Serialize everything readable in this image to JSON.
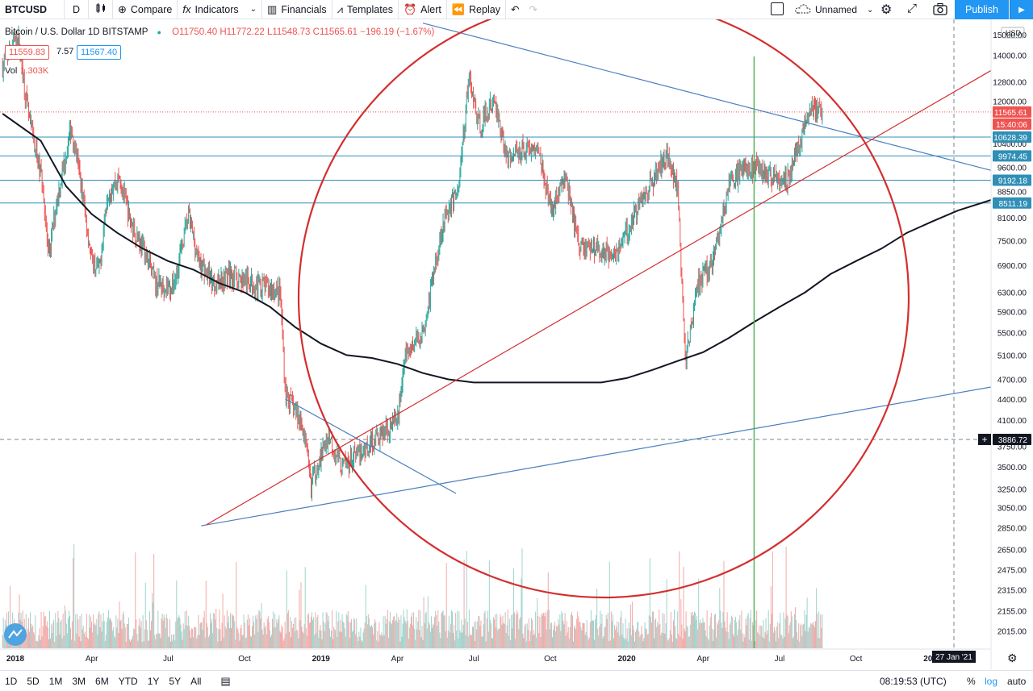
{
  "toolbar": {
    "symbol": "BTCUSD",
    "interval": "D",
    "compare": "Compare",
    "indicators": "Indicators",
    "financials": "Financials",
    "templates": "Templates",
    "alert": "Alert",
    "replay": "Replay",
    "layout_name": "Unnamed",
    "publish": "Publish"
  },
  "legend": {
    "title": "Bitcoin / U.S. Dollar  1D  BITSTAMP",
    "ohlc": "O11750.40  H11772.22  L11548.73  C11565.61  −196.19 (−1.67%)",
    "bid": "11559.83",
    "spread": "7.57",
    "ask": "11567.40",
    "vol_label": "Vol",
    "vol_value": "1.303K"
  },
  "axis": {
    "currency": "USD",
    "cursor_price": "3886.72",
    "cursor_date": "27 Jan '21"
  },
  "bottom": {
    "ranges": [
      "1D",
      "5D",
      "1M",
      "3M",
      "6M",
      "YTD",
      "1Y",
      "5Y",
      "All"
    ],
    "clock": "08:19:53 (UTC)",
    "pct": "%",
    "log": "log",
    "auto": "auto"
  },
  "colors": {
    "up": "#26a69a",
    "down": "#ef5350",
    "ma": "#131722",
    "trend_blue": "#4a7fc1",
    "hline": "#2f8fb5",
    "circle": "#d32f2f",
    "vline": "#4caf50",
    "accent": "#2196f3"
  },
  "chart_data": {
    "type": "candlestick",
    "symbol": "BTCUSD",
    "scale": "log",
    "ylim": [
      1900,
      15800
    ],
    "y_ticks": [
      15000,
      14000,
      12800,
      12000,
      11200,
      10400,
      9600,
      8850,
      8100,
      7500,
      6900,
      6300,
      5900,
      5500,
      5100,
      4700,
      4400,
      4100,
      3750,
      3500,
      3250,
      3050,
      2850,
      2650,
      2475,
      2315,
      2155,
      2015
    ],
    "y_tick_labels": [
      "15000.00",
      "14000.00",
      "12800.00",
      "12000.00",
      "11200.00",
      "10400.00",
      "9600.00",
      "8850.00",
      "8100.00",
      "7500.00",
      "6900.00",
      "6300.00",
      "5900.00",
      "5500.00",
      "5100.00",
      "4700.00",
      "4400.00",
      "4100.00",
      "3750.00",
      "3500.00",
      "3250.00",
      "3050.00",
      "2850.00",
      "2650.00",
      "2475.00",
      "2315.00",
      "2155.00",
      "2015.00"
    ],
    "x_ticks": [
      "2018",
      "Apr",
      "Jul",
      "Oct",
      "2019",
      "Apr",
      "Jul",
      "Oct",
      "2020",
      "Apr",
      "Jul",
      "Oct",
      "2021"
    ],
    "x_tick_months": [
      0,
      3,
      6,
      9,
      12,
      15,
      18,
      21,
      24,
      27,
      30,
      33,
      36
    ],
    "x_range_months": [
      -0.6,
      38.3
    ],
    "close_path": [
      [
        -0.5,
        13500
      ],
      [
        0.1,
        15000
      ],
      [
        0.5,
        11500
      ],
      [
        1.1,
        9000
      ],
      [
        1.3,
        7000
      ],
      [
        1.6,
        8500
      ],
      [
        2.2,
        11000
      ],
      [
        2.5,
        9500
      ],
      [
        3.0,
        7000
      ],
      [
        3.3,
        6800
      ],
      [
        3.6,
        8800
      ],
      [
        4.1,
        9300
      ],
      [
        4.5,
        8000
      ],
      [
        5.1,
        7200
      ],
      [
        5.5,
        6500
      ],
      [
        6.2,
        6400
      ],
      [
        6.8,
        8200
      ],
      [
        7.2,
        7000
      ],
      [
        7.8,
        6500
      ],
      [
        8.4,
        6700
      ],
      [
        9.2,
        6500
      ],
      [
        10.0,
        6400
      ],
      [
        10.4,
        6300
      ],
      [
        10.6,
        4500
      ],
      [
        11.3,
        4000
      ],
      [
        11.6,
        3300
      ],
      [
        12.3,
        3900
      ],
      [
        12.8,
        3500
      ],
      [
        13.5,
        3650
      ],
      [
        14.3,
        3900
      ],
      [
        15.0,
        4100
      ],
      [
        15.3,
        5100
      ],
      [
        16.0,
        5500
      ],
      [
        16.8,
        8000
      ],
      [
        17.4,
        9000
      ],
      [
        17.8,
        13000
      ],
      [
        18.2,
        11000
      ],
      [
        18.8,
        12000
      ],
      [
        19.3,
        9900
      ],
      [
        20.0,
        10300
      ],
      [
        20.6,
        10100
      ],
      [
        21.0,
        8300
      ],
      [
        21.6,
        9300
      ],
      [
        22.1,
        7400
      ],
      [
        22.8,
        7300
      ],
      [
        23.3,
        7200
      ],
      [
        23.7,
        7300
      ],
      [
        24.5,
        8500
      ],
      [
        25.1,
        9300
      ],
      [
        25.6,
        10100
      ],
      [
        26.0,
        8900
      ],
      [
        26.3,
        5000
      ],
      [
        26.8,
        6500
      ],
      [
        27.4,
        7000
      ],
      [
        28.0,
        9000
      ],
      [
        28.7,
        9700
      ],
      [
        29.2,
        9500
      ],
      [
        29.7,
        9300
      ],
      [
        30.3,
        9200
      ],
      [
        30.8,
        10500
      ],
      [
        31.2,
        11700
      ],
      [
        31.7,
        11600
      ]
    ],
    "moving_average": [
      [
        -0.5,
        11500
      ],
      [
        1.0,
        10500
      ],
      [
        2.0,
        9000
      ],
      [
        3.0,
        8200
      ],
      [
        4.0,
        7700
      ],
      [
        5.0,
        7300
      ],
      [
        6.0,
        7000
      ],
      [
        7.0,
        6800
      ],
      [
        8.0,
        6500
      ],
      [
        9.0,
        6300
      ],
      [
        10.0,
        6000
      ],
      [
        11.0,
        5600
      ],
      [
        12.0,
        5300
      ],
      [
        13.0,
        5100
      ],
      [
        14.0,
        5050
      ],
      [
        15.0,
        4950
      ],
      [
        16.0,
        4800
      ],
      [
        17.0,
        4700
      ],
      [
        18.0,
        4650
      ],
      [
        19.0,
        4650
      ],
      [
        20.0,
        4650
      ],
      [
        21.0,
        4650
      ],
      [
        22.0,
        4650
      ],
      [
        23.0,
        4650
      ],
      [
        24.0,
        4720
      ],
      [
        25.0,
        4850
      ],
      [
        26.0,
        5000
      ],
      [
        27.0,
        5150
      ],
      [
        28.0,
        5400
      ],
      [
        29.0,
        5700
      ],
      [
        30.0,
        6000
      ],
      [
        31.0,
        6300
      ],
      [
        32.0,
        6700
      ],
      [
        33.0,
        7000
      ],
      [
        34.0,
        7300
      ],
      [
        35.0,
        7700
      ],
      [
        36.0,
        8000
      ],
      [
        37.0,
        8300
      ],
      [
        38.3,
        8600
      ]
    ],
    "horizontal_levels": [
      {
        "price": 10628.39,
        "label": "10628.39"
      },
      {
        "price": 9974.45,
        "label": "9974.45"
      },
      {
        "price": 9192.18,
        "label": "9192.18"
      },
      {
        "price": 8511.19,
        "label": "8511.19"
      }
    ],
    "last_price": {
      "price": 11565.61,
      "label": "11565.61",
      "countdown": "15:40:06"
    },
    "trendlines": [
      {
        "color": "trend_blue",
        "from": [
          16.0,
          15600
        ],
        "to": [
          38.3,
          9500
        ]
      },
      {
        "color": "trend_blue",
        "from": [
          10.6,
          4400
        ],
        "to": [
          17.3,
          3200
        ]
      },
      {
        "color": "trend_blue",
        "from": [
          7.3,
          2870
        ],
        "to": [
          38.3,
          4580
        ]
      },
      {
        "color": "circle",
        "from": [
          7.5,
          2880
        ],
        "to": [
          38.3,
          13300
        ]
      }
    ],
    "vertical_line_month": 29.0,
    "annotation": "circle"
  }
}
